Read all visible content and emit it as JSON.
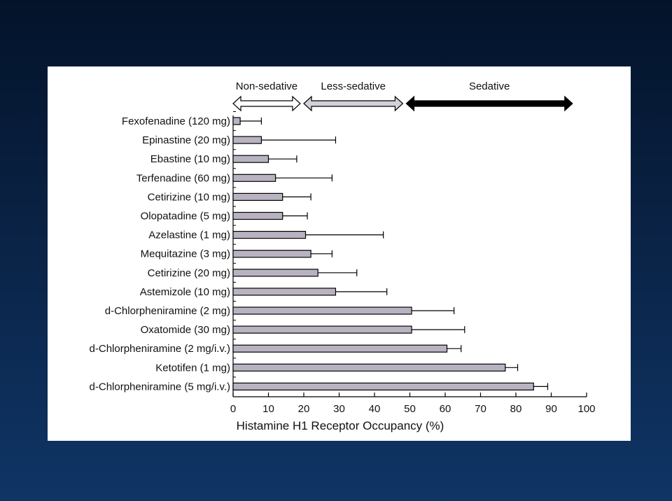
{
  "chart_data": {
    "type": "bar",
    "orientation": "horizontal",
    "categories": [
      "Fexofenadine (120 mg)",
      "Epinastine (20 mg)",
      "Ebastine (10 mg)",
      "Terfenadine (60 mg)",
      "Cetirizine (10 mg)",
      "Olopatadine (5 mg)",
      "Azelastine (1 mg)",
      "Mequitazine (3 mg)",
      "Cetirizine (20 mg)",
      "Astemizole (10 mg)",
      "d-Chlorpheniramine (2 mg)",
      "Oxatomide (30 mg)",
      "d-Chlorpheniramine (2 mg/i.v.)",
      "Ketotifen (1 mg)",
      "d-Chlorpheniramine (5 mg/i.v.)"
    ],
    "values": [
      2,
      8,
      10,
      12,
      14,
      14,
      20.5,
      22,
      24,
      29,
      50.5,
      50.5,
      60.5,
      77,
      85
    ],
    "error": [
      6,
      21,
      8,
      16,
      8,
      7,
      22,
      6,
      11,
      14.5,
      12,
      15,
      4,
      3.5,
      4
    ],
    "xlabel": "Histamine H1 Receptor Occupancy (%)",
    "xlim": [
      0,
      100
    ],
    "xticks": [
      0,
      10,
      20,
      30,
      40,
      50,
      60,
      70,
      80,
      90,
      100
    ],
    "bar_color": "#b9b3c1",
    "zones": [
      {
        "label": "Non-sedative",
        "from": 0,
        "to": 19,
        "fill": "#ffffff"
      },
      {
        "label": "Less-sedative",
        "from": 20,
        "to": 48,
        "fill": "#d4d0da"
      },
      {
        "label": "Sedative",
        "from": 49,
        "to": 96,
        "fill": "#000000"
      }
    ]
  }
}
